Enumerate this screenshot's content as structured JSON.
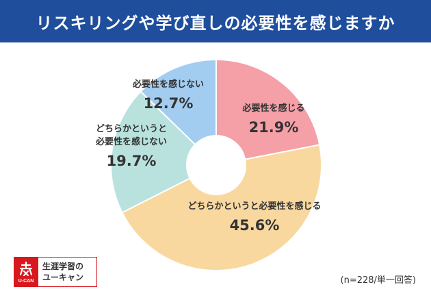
{
  "header": {
    "title": "リスキリングや学び直しの必要性を感じますか"
  },
  "chart_data": {
    "type": "pie",
    "title": "リスキリングや学び直しの必要性を感じますか",
    "slices": [
      {
        "label": "必要性を感じる",
        "label_lines": [
          "必要性を感じる"
        ],
        "value": 21.9,
        "value_text": "21.9%",
        "color": "#f59fa7"
      },
      {
        "label": "どちらかというと必要性を感じる",
        "label_lines": [
          "どちらかというと必要性を感じる"
        ],
        "value": 45.6,
        "value_text": "45.6%",
        "color": "#f8d89f"
      },
      {
        "label": "どちらかというと必要性を感じない",
        "label_lines": [
          "どちらかというと",
          "必要性を感じない"
        ],
        "value": 19.7,
        "value_text": "19.7%",
        "color": "#b9e2df"
      },
      {
        "label": "必要性を感じない",
        "label_lines": [
          "必要性を感じない"
        ],
        "value": 12.7,
        "value_text": "12.7%",
        "color": "#a3cdf0"
      }
    ],
    "donut": true,
    "start_angle": "12 o'clock",
    "direction": "clockwise",
    "note": "(n=228/単一回答)"
  },
  "logo": {
    "mark_text": "U-CAN",
    "line1": "生涯学習の",
    "line2": "ユーキャン",
    "color": "#d7191f"
  }
}
